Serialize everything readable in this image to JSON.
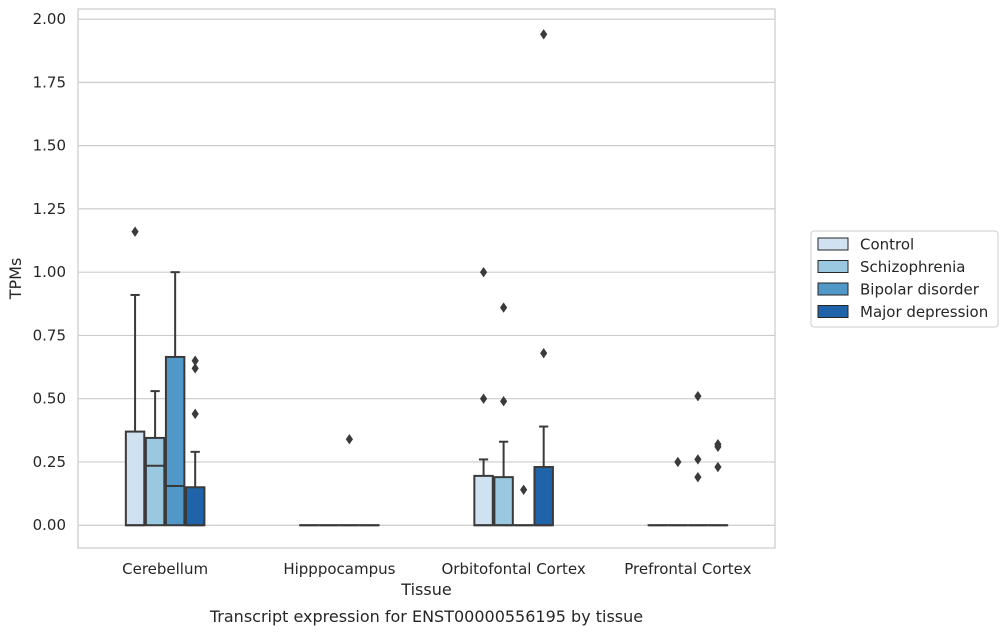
{
  "chart_data": {
    "type": "box",
    "title": "",
    "caption": "Transcript expression for ENST00000556195 by tissue",
    "xlabel": "Tissue",
    "ylabel": "TPMs",
    "ylim": [
      -0.09,
      2.04
    ],
    "yticks": [
      "0.00",
      "0.25",
      "0.50",
      "0.75",
      "1.00",
      "1.25",
      "1.50",
      "1.75",
      "2.00"
    ],
    "ytick_values": [
      0,
      0.25,
      0.5,
      0.75,
      1.0,
      1.25,
      1.5,
      1.75,
      2.0
    ],
    "grid": "horizontal",
    "legend_position": "right",
    "categories": [
      "Cerebellum",
      "Hipppocampus",
      "Orbitofontal Cortex",
      "Prefrontal Cortex"
    ],
    "series": [
      {
        "name": "Control",
        "color": "#d0e1f2",
        "boxes": [
          {
            "min": 0,
            "q1": 0,
            "median": 0,
            "q3": 0.37,
            "max": 0.91,
            "outliers": [
              1.16
            ]
          },
          {
            "min": 0,
            "q1": 0,
            "median": 0,
            "q3": 0,
            "max": 0,
            "outliers": []
          },
          {
            "min": 0,
            "q1": 0,
            "median": 0,
            "q3": 0.195,
            "max": 0.26,
            "outliers": [
              0.5,
              1.0
            ]
          },
          {
            "min": 0,
            "q1": 0,
            "median": 0,
            "q3": 0,
            "max": 0,
            "outliers": []
          }
        ]
      },
      {
        "name": "Schizophrenia",
        "color": "#9ac8e0",
        "boxes": [
          {
            "min": 0,
            "q1": 0,
            "median": 0.235,
            "q3": 0.345,
            "max": 0.53,
            "outliers": []
          },
          {
            "min": 0,
            "q1": 0,
            "median": 0,
            "q3": 0,
            "max": 0,
            "outliers": []
          },
          {
            "min": 0,
            "q1": 0,
            "median": 0,
            "q3": 0.19,
            "max": 0.33,
            "outliers": [
              0.49,
              0.86
            ]
          },
          {
            "min": 0,
            "q1": 0,
            "median": 0,
            "q3": 0,
            "max": 0,
            "outliers": [
              0.25
            ]
          }
        ]
      },
      {
        "name": "Bipolar disorder",
        "color": "#5198c8",
        "boxes": [
          {
            "min": 0,
            "q1": 0,
            "median": 0.155,
            "q3": 0.665,
            "max": 1.0,
            "outliers": []
          },
          {
            "min": 0,
            "q1": 0,
            "median": 0,
            "q3": 0,
            "max": 0,
            "outliers": [
              0.34
            ]
          },
          {
            "min": 0,
            "q1": 0,
            "median": 0,
            "q3": 0,
            "max": 0,
            "outliers": [
              0.14
            ]
          },
          {
            "min": 0,
            "q1": 0,
            "median": 0,
            "q3": 0,
            "max": 0,
            "outliers": [
              0.19,
              0.26,
              0.51
            ]
          }
        ]
      },
      {
        "name": "Major depression",
        "color": "#1f63a8",
        "boxes": [
          {
            "min": 0,
            "q1": 0,
            "median": 0,
            "q3": 0.15,
            "max": 0.29,
            "outliers": [
              0.44,
              0.62,
              0.65
            ]
          },
          {
            "min": 0,
            "q1": 0,
            "median": 0,
            "q3": 0,
            "max": 0,
            "outliers": []
          },
          {
            "min": 0,
            "q1": 0,
            "median": 0,
            "q3": 0.23,
            "max": 0.39,
            "outliers": [
              0.68,
              1.94
            ]
          },
          {
            "min": 0,
            "q1": 0,
            "median": 0,
            "q3": 0,
            "max": 0,
            "outliers": [
              0.23,
              0.31,
              0.32
            ]
          }
        ]
      }
    ]
  }
}
